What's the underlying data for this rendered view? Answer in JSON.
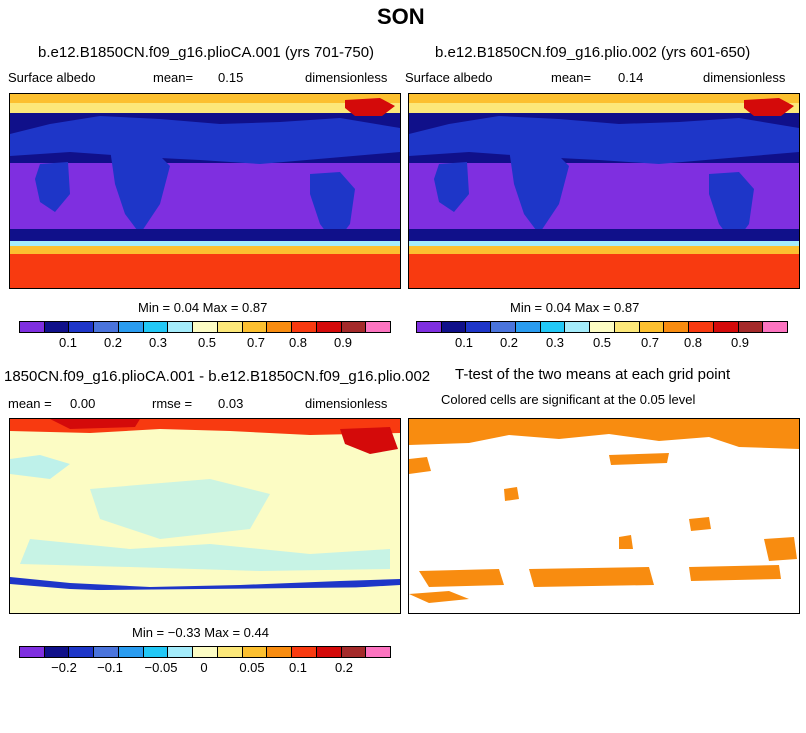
{
  "figure_title": "SON",
  "panels": {
    "top_left": {
      "title": "b.e12.B1850CN.f09_g16.plioCA.001 (yrs 701-750)",
      "variable": "Surface albedo",
      "mean_label": "mean=",
      "mean_value": "0.15",
      "units": "dimensionless",
      "minmax": "Min =   0.04 Max =   0.87"
    },
    "top_right": {
      "title": "b.e12.B1850CN.f09_g16.plio.002 (yrs 601-650)",
      "variable": "Surface albedo",
      "mean_label": "mean=",
      "mean_value": "0.14",
      "units": "dimensionless",
      "minmax": "Min =   0.04 Max =   0.87"
    },
    "bottom_left": {
      "title": "1850CN.f09_g16.plioCA.001 - b.e12.B1850CN.f09_g16.plio.002",
      "mean_label": "mean =",
      "mean_value": "0.00",
      "rmse_label": "rmse =",
      "rmse_value": "0.03",
      "units": "dimensionless",
      "minmax": "Min = −0.33 Max =   0.44"
    },
    "bottom_right": {
      "title": "T-test of the two means at each grid point",
      "subtitle": "Colored cells are significant at the 0.05 level"
    }
  },
  "colorbars": {
    "abs": {
      "colors": [
        "#7f2fe0",
        "#10108a",
        "#1e36c8",
        "#4a74dc",
        "#2a9cf0",
        "#22c8f6",
        "#a4ecfb",
        "#fcfcc4",
        "#fce87a",
        "#fcc030",
        "#f88c10",
        "#f83a10",
        "#d40a0a",
        "#a42a2a",
        "#fc74c0"
      ],
      "labels": [
        "0.1",
        "0.2",
        "0.3",
        "0.5",
        "0.7",
        "0.8",
        "0.9"
      ]
    },
    "diff": {
      "colors": [
        "#7f2fe0",
        "#10108a",
        "#1e36c8",
        "#4a74dc",
        "#2a9cf0",
        "#22c8f6",
        "#a4ecfb",
        "#fcfcc4",
        "#fce87a",
        "#fcc030",
        "#f88c10",
        "#f83a10",
        "#d40a0a",
        "#a42a2a",
        "#fc74c0"
      ],
      "labels": [
        "−0.2",
        "−0.1",
        "−0.05",
        "0",
        "0.05",
        "0.1",
        "0.2"
      ]
    }
  }
}
